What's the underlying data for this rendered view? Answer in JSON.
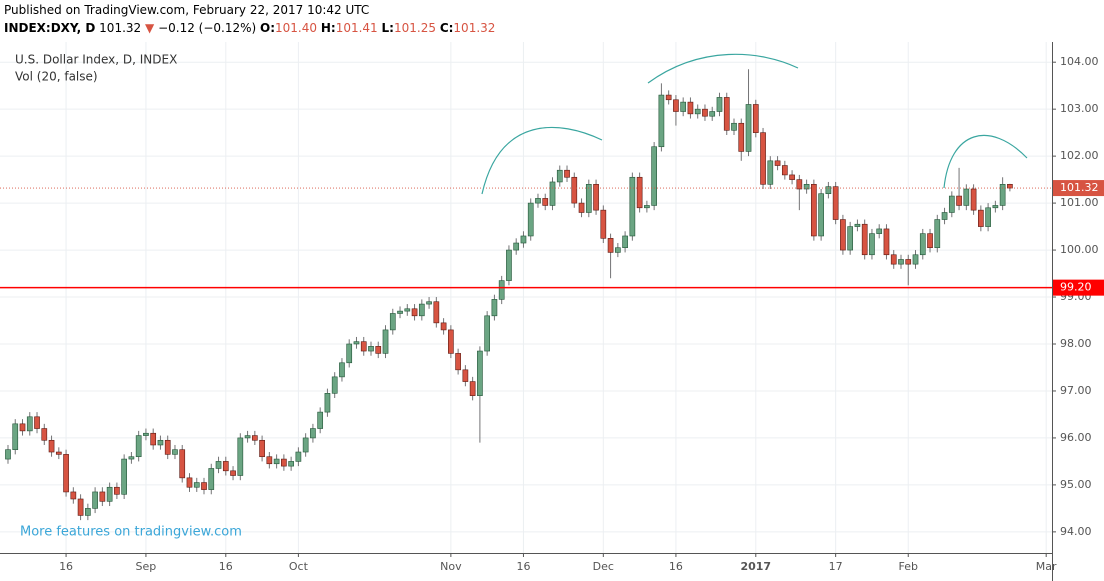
{
  "header": {
    "published": "Published on TradingView.com, February 22, 2017 10:42 UTC",
    "symbol": "INDEX:DXY, D",
    "price": "101.32",
    "arrow": "▼",
    "change": "−0.12 (−0.12%)",
    "ohlc": [
      {
        "label": "O:",
        "value": "101.40"
      },
      {
        "label": "H:",
        "value": "101.41"
      },
      {
        "label": "L:",
        "value": "101.25"
      },
      {
        "label": "C:",
        "value": "101.32"
      }
    ]
  },
  "chart_data": {
    "type": "candlestick",
    "title": "U.S. Dollar Index, D, INDEX",
    "subtitle": "Vol (20, false)",
    "watermark": "More features on tradingview.com",
    "up_color": "#6ba583",
    "down_color": "#d75442",
    "up_border": "#225437",
    "down_border": "#5b1a13",
    "wick_color": "#737375",
    "grid": true,
    "xlim": [
      -1.1,
      143.8
    ],
    "xticks": [
      {
        "value": 8,
        "label": "16"
      },
      {
        "value": 19,
        "label": "Sep"
      },
      {
        "value": 30,
        "label": "16"
      },
      {
        "value": 40,
        "label": "Oct"
      },
      {
        "value": 61,
        "label": "Nov"
      },
      {
        "value": 71,
        "label": "16"
      },
      {
        "value": 82,
        "label": "Dec"
      },
      {
        "value": 92,
        "label": "16"
      },
      {
        "value": 103,
        "label": "2017",
        "bold": true
      },
      {
        "value": 114,
        "label": "17"
      },
      {
        "value": 124,
        "label": "Feb"
      },
      {
        "value": 143,
        "label": "Mar"
      }
    ],
    "ylim": [
      93.55,
      104.43
    ],
    "yticks": [
      {
        "value": 94,
        "label": "94.00"
      },
      {
        "value": 95,
        "label": "95.00"
      },
      {
        "value": 96,
        "label": "96.00"
      },
      {
        "value": 97,
        "label": "97.00"
      },
      {
        "value": 98,
        "label": "98.00"
      },
      {
        "value": 99,
        "label": "99.00"
      },
      {
        "value": 100,
        "label": "100.00"
      },
      {
        "value": 101,
        "label": "101.00"
      },
      {
        "value": 102,
        "label": "102.00"
      },
      {
        "value": 103,
        "label": "103.00"
      },
      {
        "value": 104,
        "label": "104.00"
      }
    ],
    "last_price": {
      "value": 101.32,
      "label": "101.32",
      "color": "#d75442"
    },
    "price_lines": [
      {
        "value": 99.2,
        "label": "99.20",
        "color": "#ff0000"
      }
    ],
    "series": [
      {
        "name": "U.S. Dollar Index, D, INDEX",
        "open": [
          95.55,
          95.75,
          96.3,
          96.15,
          96.45,
          96.2,
          95.95,
          95.7,
          95.65,
          94.85,
          94.7,
          94.35,
          94.5,
          94.85,
          94.65,
          94.95,
          94.8,
          95.55,
          95.6,
          96.05,
          96.1,
          95.85,
          95.95,
          95.65,
          95.75,
          95.15,
          94.95,
          95.05,
          94.9,
          95.35,
          95.5,
          95.3,
          95.2,
          96.0,
          96.05,
          95.95,
          95.6,
          95.45,
          95.55,
          95.4,
          95.5,
          95.7,
          96.0,
          96.2,
          96.55,
          96.95,
          97.3,
          97.6,
          98.0,
          98.05,
          97.85,
          97.95,
          97.8,
          98.3,
          98.65,
          98.7,
          98.75,
          98.6,
          98.85,
          98.9,
          98.45,
          98.3,
          97.8,
          97.45,
          97.2,
          96.9,
          97.85,
          98.6,
          98.95,
          99.35,
          100.0,
          100.15,
          100.3,
          101.0,
          101.1,
          100.95,
          101.45,
          101.7,
          101.55,
          101.0,
          100.8,
          101.4,
          100.85,
          100.25,
          99.95,
          100.05,
          100.3,
          101.55,
          100.9,
          100.95,
          102.2,
          103.3,
          103.2,
          102.95,
          103.15,
          102.9,
          103.0,
          102.85,
          102.95,
          103.25,
          102.55,
          102.7,
          102.1,
          103.1,
          102.5,
          101.4,
          101.9,
          101.8,
          101.6,
          101.5,
          101.3,
          101.4,
          100.3,
          101.2,
          101.35,
          100.65,
          100.0,
          100.5,
          100.55,
          99.9,
          100.35,
          100.45,
          99.9,
          99.7,
          99.8,
          99.7,
          99.9,
          100.35,
          100.05,
          100.65,
          100.8,
          101.15,
          100.95,
          101.3,
          100.85,
          100.5,
          100.9,
          100.95,
          101.4
        ],
        "high": [
          95.85,
          96.4,
          96.4,
          96.55,
          96.55,
          96.3,
          96.05,
          95.8,
          95.75,
          94.95,
          94.8,
          94.6,
          94.95,
          94.95,
          95.05,
          95.05,
          95.65,
          95.7,
          96.15,
          96.2,
          96.2,
          96.05,
          96.05,
          95.85,
          95.85,
          95.25,
          95.15,
          95.15,
          95.45,
          95.6,
          95.6,
          95.4,
          96.1,
          96.15,
          96.15,
          96.05,
          95.7,
          95.65,
          95.65,
          95.6,
          95.8,
          96.1,
          96.3,
          96.65,
          97.05,
          97.4,
          97.7,
          98.1,
          98.15,
          98.15,
          98.05,
          98.05,
          98.4,
          98.75,
          98.8,
          98.85,
          98.85,
          98.95,
          99.0,
          99.0,
          98.55,
          98.4,
          97.9,
          97.55,
          97.3,
          97.95,
          98.7,
          99.05,
          99.45,
          100.1,
          100.25,
          100.4,
          101.1,
          101.2,
          101.2,
          101.55,
          101.8,
          101.8,
          101.65,
          101.1,
          101.5,
          101.5,
          100.95,
          100.35,
          100.15,
          100.4,
          101.65,
          101.65,
          101.05,
          102.3,
          103.55,
          103.4,
          103.3,
          103.25,
          103.25,
          103.1,
          103.1,
          103.05,
          103.35,
          103.35,
          102.8,
          102.8,
          103.85,
          103.2,
          102.6,
          102.0,
          102.0,
          101.9,
          101.7,
          101.6,
          101.5,
          101.5,
          101.3,
          101.45,
          101.45,
          100.75,
          100.6,
          100.65,
          100.65,
          100.45,
          100.55,
          100.55,
          100.0,
          99.9,
          99.9,
          100.0,
          100.45,
          100.45,
          100.75,
          100.9,
          101.25,
          101.75,
          101.4,
          101.4,
          100.95,
          101.0,
          101.05,
          101.55,
          101.41
        ],
        "low": [
          95.45,
          95.65,
          96.05,
          96.05,
          96.1,
          95.85,
          95.6,
          95.55,
          94.75,
          94.6,
          94.25,
          94.25,
          94.4,
          94.55,
          94.55,
          94.7,
          94.7,
          95.45,
          95.5,
          95.95,
          95.75,
          95.75,
          95.55,
          95.55,
          95.05,
          94.85,
          94.85,
          94.8,
          94.8,
          95.25,
          95.2,
          95.1,
          95.1,
          95.9,
          95.85,
          95.5,
          95.35,
          95.35,
          95.3,
          95.3,
          95.4,
          95.6,
          95.9,
          96.1,
          96.45,
          96.85,
          97.2,
          97.5,
          97.9,
          97.75,
          97.75,
          97.7,
          97.7,
          98.2,
          98.55,
          98.6,
          98.5,
          98.5,
          98.75,
          98.35,
          98.2,
          97.7,
          97.35,
          97.1,
          96.8,
          95.9,
          97.75,
          98.5,
          98.85,
          99.25,
          99.9,
          100.05,
          100.2,
          100.9,
          100.85,
          100.85,
          101.35,
          101.45,
          100.9,
          100.7,
          100.7,
          100.75,
          100.15,
          99.4,
          99.85,
          99.95,
          100.2,
          100.8,
          100.8,
          100.85,
          102.1,
          103.1,
          102.65,
          102.85,
          102.8,
          102.8,
          102.75,
          102.75,
          102.85,
          102.45,
          102.45,
          101.9,
          102.0,
          102.4,
          101.3,
          101.3,
          101.7,
          101.5,
          101.4,
          100.85,
          101.2,
          100.2,
          100.2,
          101.1,
          100.55,
          99.9,
          99.9,
          100.4,
          99.8,
          99.8,
          100.25,
          99.8,
          99.6,
          99.6,
          99.25,
          99.6,
          99.8,
          99.95,
          99.95,
          100.55,
          100.7,
          100.85,
          100.85,
          100.75,
          100.4,
          100.4,
          100.8,
          100.85,
          101.25
        ],
        "close": [
          95.75,
          96.3,
          96.15,
          96.45,
          96.2,
          95.95,
          95.7,
          95.65,
          94.85,
          94.7,
          94.35,
          94.5,
          94.85,
          94.65,
          94.95,
          94.8,
          95.55,
          95.6,
          96.05,
          96.1,
          95.85,
          95.95,
          95.65,
          95.75,
          95.15,
          94.95,
          95.05,
          94.9,
          95.35,
          95.5,
          95.3,
          95.2,
          96.0,
          96.05,
          95.95,
          95.6,
          95.45,
          95.55,
          95.4,
          95.5,
          95.7,
          96.0,
          96.2,
          96.55,
          96.95,
          97.3,
          97.6,
          98.0,
          98.05,
          97.85,
          97.95,
          97.8,
          98.3,
          98.65,
          98.7,
          98.75,
          98.6,
          98.85,
          98.9,
          98.45,
          98.3,
          97.8,
          97.45,
          97.2,
          96.9,
          97.85,
          98.6,
          98.95,
          99.35,
          100.0,
          100.15,
          100.3,
          101.0,
          101.1,
          100.95,
          101.45,
          101.7,
          101.55,
          101.0,
          100.8,
          101.4,
          100.85,
          100.25,
          99.95,
          100.05,
          100.3,
          101.55,
          100.9,
          100.95,
          102.2,
          103.3,
          103.2,
          102.95,
          103.15,
          102.9,
          103.0,
          102.85,
          102.95,
          103.25,
          102.55,
          102.7,
          102.1,
          103.1,
          102.5,
          101.4,
          101.9,
          101.8,
          101.6,
          101.5,
          101.3,
          101.4,
          100.3,
          101.2,
          101.35,
          100.65,
          100.0,
          100.5,
          100.55,
          99.9,
          100.35,
          100.45,
          99.9,
          99.7,
          99.8,
          99.7,
          99.9,
          100.35,
          100.05,
          100.65,
          100.8,
          101.15,
          100.95,
          101.3,
          100.85,
          100.5,
          100.9,
          100.95,
          101.4,
          101.32
        ]
      }
    ]
  }
}
